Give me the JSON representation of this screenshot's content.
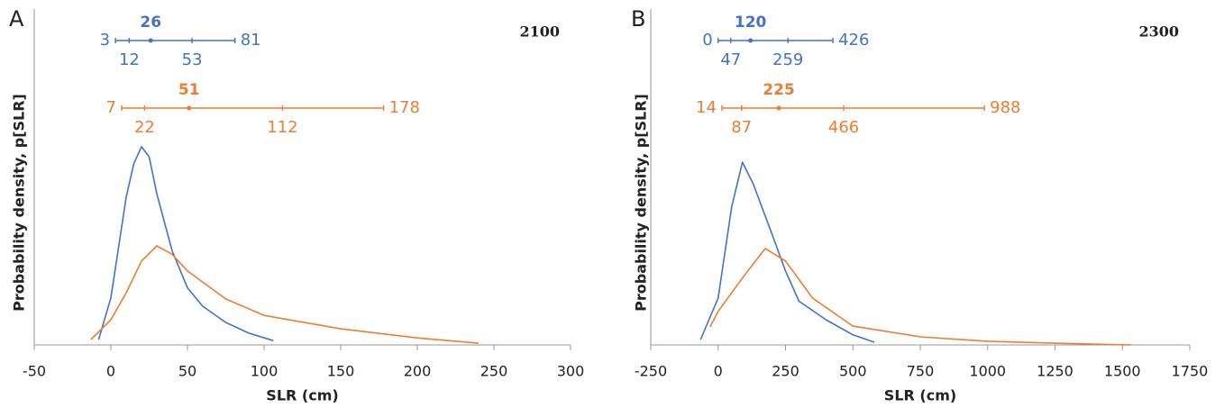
{
  "chart_data": [
    {
      "type": "line",
      "panel": "A",
      "title": "2100",
      "x_label": "SLR (cm)",
      "y_label": "Probability density, p[SLR]",
      "xlim": [
        -50,
        300
      ],
      "xticks": [
        -50,
        0,
        50,
        100,
        150,
        200,
        250,
        300
      ],
      "ylim": [
        0,
        1
      ],
      "grid": false,
      "series": [
        {
          "color": "#4472c4",
          "x": [
            -8,
            0,
            10,
            15,
            20,
            25,
            30,
            40,
            50,
            60,
            75,
            90,
            106
          ],
          "values": [
            0.016,
            0.14,
            0.44,
            0.54,
            0.59,
            0.56,
            0.45,
            0.28,
            0.17,
            0.115,
            0.067,
            0.035,
            0.013
          ]
        },
        {
          "color": "#ed7d31",
          "x": [
            -13,
            0,
            10,
            20,
            30,
            40,
            50,
            75,
            100,
            150,
            200,
            240
          ],
          "values": [
            0.016,
            0.075,
            0.155,
            0.25,
            0.295,
            0.27,
            0.22,
            0.137,
            0.088,
            0.048,
            0.021,
            0.005
          ]
        }
      ],
      "intervals": [
        {
          "color": "#4472c4",
          "min": 3,
          "low": 12,
          "median": 26,
          "high": 53,
          "max": 81
        },
        {
          "color": "#ed7d31",
          "min": 7,
          "low": 22,
          "median": 51,
          "high": 112,
          "max": 178
        }
      ]
    },
    {
      "type": "line",
      "panel": "B",
      "title": "2300",
      "x_label": "SLR (cm)",
      "y_label": "Probability density, p[SLR]",
      "xlim": [
        -250,
        1750
      ],
      "xticks": [
        -250,
        0,
        250,
        500,
        750,
        1000,
        1250,
        1500,
        1750
      ],
      "ylim": [
        0,
        1
      ],
      "grid": false,
      "series": [
        {
          "color": "#4472c4",
          "x": [
            -65,
            0,
            50,
            90,
            130,
            200,
            250,
            300,
            400,
            500,
            580
          ],
          "values": [
            0.016,
            0.14,
            0.41,
            0.544,
            0.48,
            0.33,
            0.22,
            0.13,
            0.075,
            0.03,
            0.008
          ]
        },
        {
          "color": "#ed7d31",
          "x": [
            -30,
            0,
            100,
            175,
            250,
            350,
            500,
            750,
            1000,
            1250,
            1530
          ],
          "values": [
            0.054,
            0.1,
            0.21,
            0.287,
            0.25,
            0.14,
            0.056,
            0.024,
            0.011,
            0.005,
            0
          ]
        }
      ],
      "intervals": [
        {
          "color": "#4472c4",
          "min": 0,
          "low": 47,
          "median": 120,
          "high": 259,
          "max": 426
        },
        {
          "color": "#ed7d31",
          "min": 14,
          "low": 87,
          "median": 225,
          "high": 466,
          "max": 988
        }
      ]
    }
  ]
}
